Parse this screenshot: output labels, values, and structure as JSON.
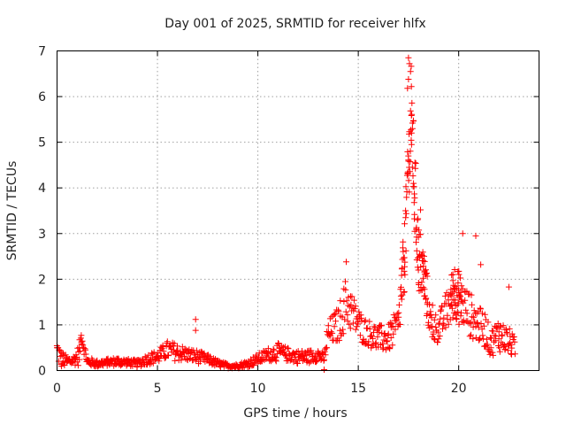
{
  "chart_data": {
    "type": "scatter",
    "title": "Day 001 of 2025, SRMTID for receiver hlfx",
    "xlabel": "GPS time / hours",
    "ylabel": "SRMTID / TECUs",
    "xlim": [
      0,
      24
    ],
    "ylim": [
      0,
      7
    ],
    "xticks": [
      0,
      5,
      10,
      15,
      20
    ],
    "yticks": [
      0,
      1,
      2,
      3,
      4,
      5,
      6,
      7
    ],
    "grid": true,
    "marker": "+",
    "color": "#ff0000",
    "series": [
      {
        "name": "SRMTID",
        "envelope": [
          [
            0.0,
            0.45,
            0.3
          ],
          [
            0.2,
            0.25,
            0.2
          ],
          [
            0.5,
            0.2,
            0.12
          ],
          [
            0.8,
            0.22,
            0.1
          ],
          [
            1.1,
            0.35,
            0.25
          ],
          [
            1.2,
            0.75,
            0.15
          ],
          [
            1.5,
            0.2,
            0.1
          ],
          [
            2.0,
            0.15,
            0.08
          ],
          [
            2.5,
            0.18,
            0.08
          ],
          [
            3.0,
            0.2,
            0.1
          ],
          [
            3.5,
            0.18,
            0.08
          ],
          [
            4.0,
            0.15,
            0.08
          ],
          [
            4.5,
            0.25,
            0.12
          ],
          [
            5.0,
            0.3,
            0.15
          ],
          [
            5.5,
            0.45,
            0.2
          ],
          [
            6.0,
            0.4,
            0.2
          ],
          [
            6.5,
            0.35,
            0.15
          ],
          [
            7.0,
            0.3,
            0.15
          ],
          [
            7.5,
            0.25,
            0.1
          ],
          [
            8.0,
            0.15,
            0.08
          ],
          [
            8.5,
            0.1,
            0.05
          ],
          [
            9.0,
            0.1,
            0.05
          ],
          [
            9.5,
            0.15,
            0.08
          ],
          [
            10.0,
            0.25,
            0.12
          ],
          [
            10.5,
            0.35,
            0.15
          ],
          [
            11.0,
            0.4,
            0.2
          ],
          [
            11.5,
            0.35,
            0.15
          ],
          [
            12.0,
            0.3,
            0.15
          ],
          [
            12.5,
            0.3,
            0.15
          ],
          [
            13.0,
            0.35,
            0.15
          ],
          [
            13.3,
            0.25,
            0.1
          ],
          [
            13.5,
            0.8,
            0.3
          ],
          [
            14.0,
            1.0,
            0.4
          ],
          [
            14.4,
            1.5,
            0.6
          ],
          [
            14.8,
            1.2,
            0.4
          ],
          [
            15.2,
            0.9,
            0.3
          ],
          [
            15.6,
            0.8,
            0.3
          ],
          [
            16.0,
            0.7,
            0.3
          ],
          [
            16.5,
            0.7,
            0.3
          ],
          [
            17.0,
            1.0,
            0.4
          ],
          [
            17.3,
            2.5,
            0.8
          ],
          [
            17.5,
            4.5,
            0.8
          ],
          [
            17.65,
            5.5,
            1.2
          ],
          [
            17.8,
            4.0,
            1.0
          ],
          [
            18.0,
            2.5,
            0.8
          ],
          [
            18.3,
            2.0,
            0.6
          ],
          [
            18.6,
            1.0,
            0.4
          ],
          [
            19.0,
            0.9,
            0.3
          ],
          [
            19.5,
            1.4,
            0.5
          ],
          [
            19.8,
            1.8,
            0.6
          ],
          [
            20.0,
            1.6,
            0.6
          ],
          [
            20.3,
            1.4,
            0.5
          ],
          [
            20.6,
            1.2,
            0.5
          ],
          [
            21.0,
            1.0,
            0.4
          ],
          [
            21.3,
            0.9,
            0.4
          ],
          [
            21.6,
            0.6,
            0.3
          ],
          [
            22.0,
            0.8,
            0.4
          ],
          [
            22.3,
            0.7,
            0.3
          ],
          [
            22.6,
            0.6,
            0.3
          ],
          [
            22.8,
            0.5,
            0.2
          ]
        ],
        "outliers": [
          [
            6.9,
            1.12
          ],
          [
            6.9,
            0.88
          ],
          [
            13.3,
            0.02
          ],
          [
            14.4,
            2.38
          ],
          [
            17.5,
            6.85
          ],
          [
            17.55,
            6.72
          ],
          [
            17.6,
            6.55
          ],
          [
            17.5,
            6.38
          ],
          [
            17.45,
            6.18
          ],
          [
            17.7,
            5.42
          ],
          [
            17.65,
            5.2
          ],
          [
            17.75,
            4.1
          ],
          [
            18.1,
            3.52
          ],
          [
            20.2,
            3.0
          ],
          [
            20.85,
            2.95
          ],
          [
            21.1,
            2.32
          ],
          [
            22.5,
            1.83
          ],
          [
            18.7,
            1.43
          ],
          [
            0.0,
            0.5
          ]
        ]
      }
    ]
  }
}
